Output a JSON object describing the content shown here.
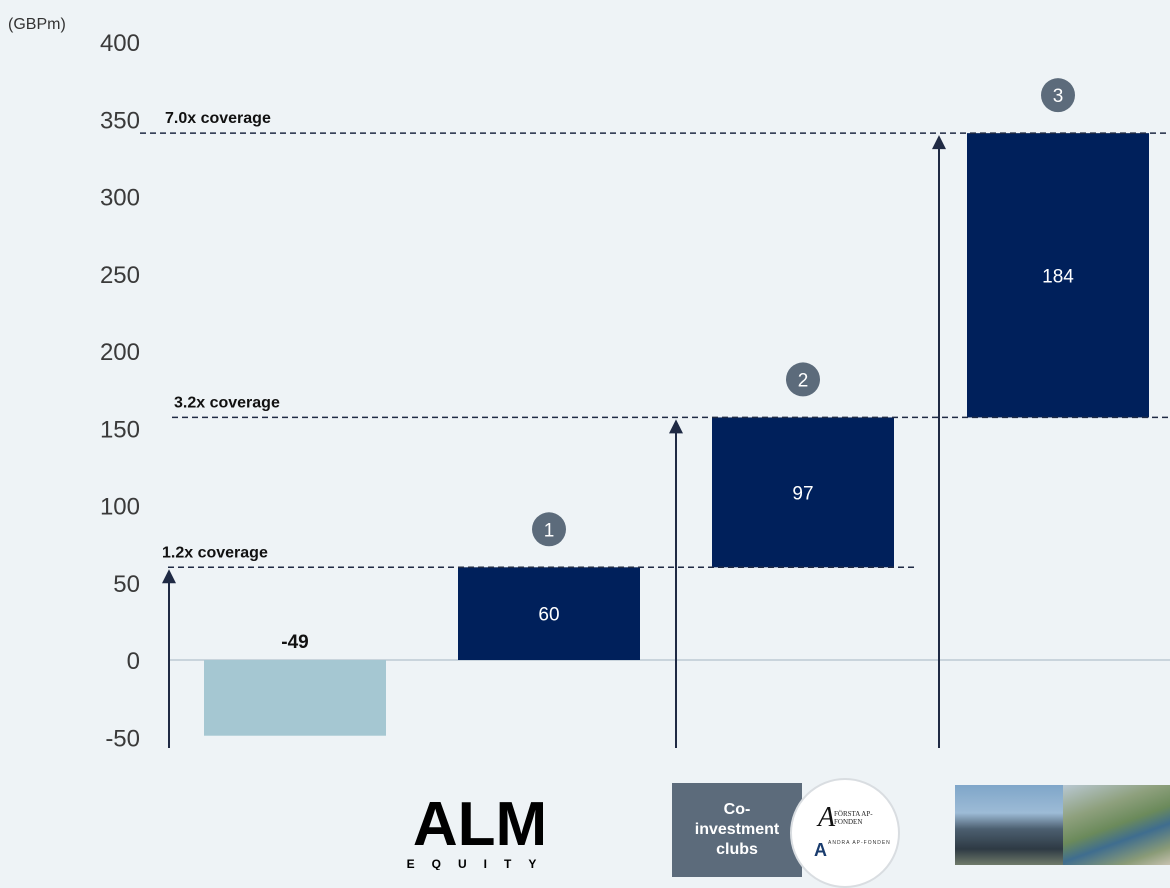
{
  "chart_data": {
    "type": "bar",
    "subtype": "waterfall",
    "unit_label": "(GBPm)",
    "ylim": [
      -50,
      400
    ],
    "yticks": [
      400,
      350,
      300,
      250,
      200,
      150,
      100,
      50,
      0,
      -50
    ],
    "bars": [
      {
        "label": "-49",
        "value": -49,
        "base": 0,
        "color": "#a5c7d2",
        "label_style": "above"
      },
      {
        "label": "60",
        "value": 60,
        "base": 0,
        "color": "#00205b",
        "badge": "1"
      },
      {
        "label": "97",
        "value": 97,
        "base": 60,
        "color": "#00205b",
        "badge": "2"
      },
      {
        "label": "184",
        "value": 184,
        "base": 157,
        "color": "#00205b",
        "badge": "3"
      }
    ],
    "coverage_lines": [
      {
        "label": "1.2x coverage",
        "value": 60
      },
      {
        "label": "3.2x coverage",
        "value": 157
      },
      {
        "label": "7.0x coverage",
        "value": 341
      }
    ],
    "grid": false,
    "legend": "none"
  },
  "logos": {
    "alm_main": "ALM",
    "alm_sub": "EQUITY",
    "coinvest_label": "Co-investment clubs",
    "ap_top": "FÖRSTA AP-FONDEN",
    "ap_bottom": "ANDRA AP-FONDEN",
    "ap_icon": "ap-fonden-logo-icon",
    "photo_icons": [
      "building-photo",
      "landscape-photo"
    ]
  },
  "colors": {
    "background": "#eef3f6",
    "bar_dark": "#00205b",
    "bar_light": "#a5c7d2",
    "badge": "#5c6b7b",
    "axis": "#1f2a44"
  }
}
